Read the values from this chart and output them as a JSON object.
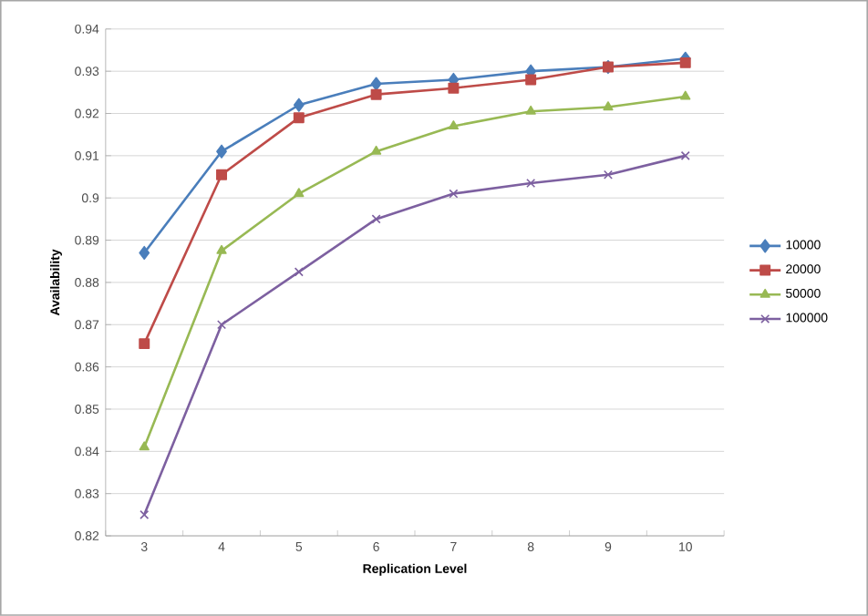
{
  "chart_data": {
    "type": "line",
    "xlabel": "Replication Level",
    "ylabel": "Availability",
    "categories": [
      "3",
      "4",
      "5",
      "6",
      "7",
      "8",
      "9",
      "10"
    ],
    "series": [
      {
        "name": "10000",
        "color": "#4a7ebb",
        "marker": "diamond",
        "values": [
          0.887,
          0.911,
          0.922,
          0.927,
          0.928,
          0.93,
          0.931,
          0.933
        ]
      },
      {
        "name": "20000",
        "color": "#be4b48",
        "marker": "square",
        "values": [
          0.8655,
          0.9055,
          0.919,
          0.9245,
          0.926,
          0.928,
          0.931,
          0.932
        ]
      },
      {
        "name": "50000",
        "color": "#98b954",
        "marker": "triangle",
        "values": [
          0.841,
          0.8875,
          0.901,
          0.911,
          0.917,
          0.9205,
          0.9215,
          0.924
        ]
      },
      {
        "name": "100000",
        "color": "#7d60a0",
        "marker": "cross",
        "values": [
          0.825,
          0.87,
          0.8825,
          0.895,
          0.901,
          0.9035,
          0.9055,
          0.91
        ]
      }
    ],
    "ylim": [
      0.82,
      0.94
    ],
    "yticks": [
      0.82,
      0.83,
      0.84,
      0.85,
      0.86,
      0.87,
      0.88,
      0.89,
      0.9,
      0.91,
      0.92,
      0.93,
      0.94
    ],
    "grid": "y",
    "legend": "right"
  }
}
